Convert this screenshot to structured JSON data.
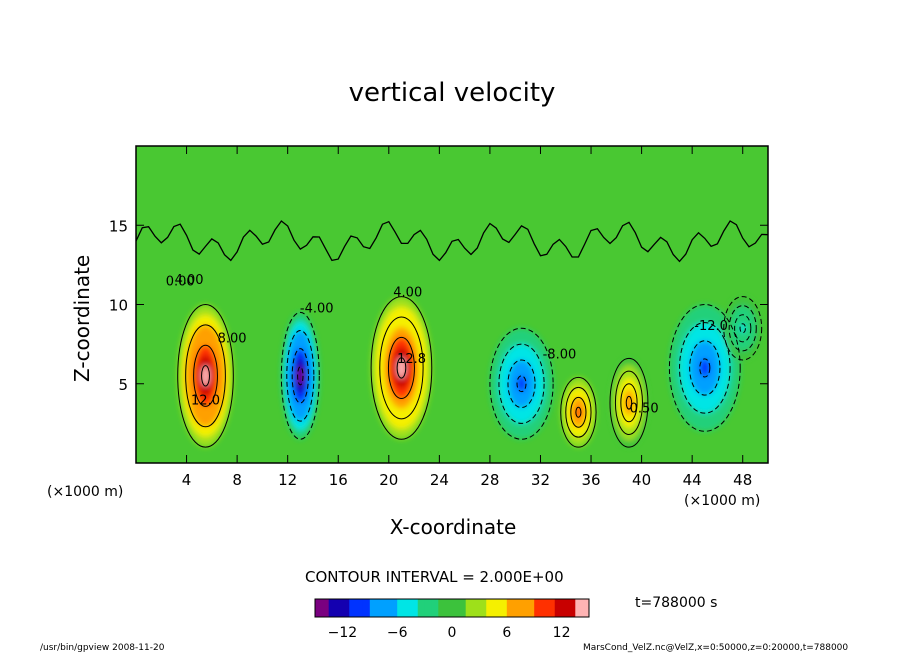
{
  "chart_data": {
    "type": "heatmap",
    "title": "vertical velocity",
    "xlabel": "X-coordinate",
    "ylabel": "Z-coordinate",
    "x_unit_label": "(×1000 m)",
    "x_unit_label_right": "(×1000 m)",
    "xlim": [
      0,
      50
    ],
    "ylim": [
      0,
      20
    ],
    "x_ticks": [
      4,
      8,
      12,
      16,
      20,
      24,
      28,
      32,
      36,
      40,
      44,
      48
    ],
    "y_ticks": [
      5,
      10,
      15
    ],
    "contour_labels": [
      "0.00",
      "4.00",
      "8.00",
      "12.0",
      "12.8",
      "-4.00",
      "-8.00",
      "-12.0",
      "0.50",
      "4.00"
    ],
    "cells": [
      {
        "x": 5.5,
        "z": 5.5,
        "sx": 2.2,
        "sz": 4.5,
        "value": 15
      },
      {
        "x": 13.0,
        "z": 5.5,
        "sx": 1.5,
        "sz": 4.0,
        "value": -15
      },
      {
        "x": 21.0,
        "z": 6.0,
        "sx": 2.4,
        "sz": 4.5,
        "value": 14
      },
      {
        "x": 30.5,
        "z": 5.0,
        "sx": 2.5,
        "sz": 3.5,
        "value": -9
      },
      {
        "x": 35.0,
        "z": 3.2,
        "sx": 1.4,
        "sz": 2.2,
        "value": 9
      },
      {
        "x": 39.0,
        "z": 3.8,
        "sx": 1.5,
        "sz": 2.8,
        "value": 8
      },
      {
        "x": 45.0,
        "z": 6.0,
        "sx": 2.8,
        "sz": 4.0,
        "value": -9
      },
      {
        "x": 48.0,
        "z": 8.5,
        "sx": 1.5,
        "sz": 2.0,
        "value": -4
      }
    ],
    "colorbar": {
      "min": -15,
      "max": 15,
      "tick_values": [
        -12,
        -6,
        0,
        6,
        12
      ],
      "tick_labels": [
        "−12",
        "−6",
        "0",
        "6",
        "12"
      ],
      "stops": [
        "#7a0080",
        "#1400b0",
        "#0033ff",
        "#00a0ff",
        "#00e5e5",
        "#21d07a",
        "#3cc23c",
        "#9ee01a",
        "#f5f000",
        "#ffa000",
        "#ff3000",
        "#c80000",
        "#ffb4b4"
      ]
    },
    "contour_interval_text": "CONTOUR INTERVAL = 2.000E+00",
    "time_text": "t=788000 s"
  },
  "footer": {
    "left": "/usr/bin/gpview   2008-11-20",
    "right": "MarsCond_VelZ.nc@VelZ,x=0:50000,z=0:20000,t=788000"
  }
}
